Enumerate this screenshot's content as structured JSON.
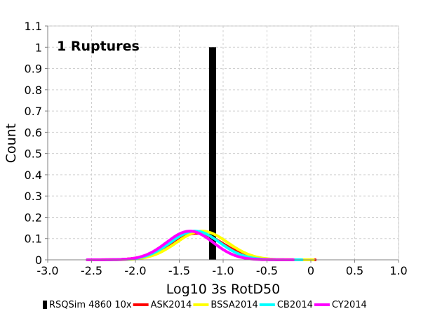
{
  "chart_data": {
    "type": "line",
    "title": "",
    "annotation": "1 Ruptures",
    "xlabel": "Log10 3s RotD50",
    "ylabel": "Count",
    "xlim": [
      -3.0,
      1.0
    ],
    "ylim": [
      0,
      1.1
    ],
    "x_ticks": [
      "-3.0",
      "-2.5",
      "-2.0",
      "-1.5",
      "-1.0",
      "-0.5",
      "0",
      "0.5",
      "1.0"
    ],
    "y_ticks": [
      "0",
      "0.1",
      "0.2",
      "0.3",
      "0.4",
      "0.5",
      "0.6",
      "0.7",
      "0.8",
      "0.9",
      "1",
      "1.1"
    ],
    "grid": true,
    "legend_position": "bottom",
    "bar": {
      "name": "RSQSim 4860 10x",
      "color": "#000000",
      "x_start": -1.16,
      "x_end": -1.08,
      "value": 1.0
    },
    "series": [
      {
        "name": "ASK2014",
        "color": "#ff0000",
        "mean": -1.3,
        "sigma": 0.3,
        "peak": 0.125,
        "x_min": -2.55,
        "x_max": 0.05
      },
      {
        "name": "BSSA2014",
        "color": "#ffff00",
        "mean": -1.24,
        "sigma": 0.29,
        "peak": 0.135,
        "x_min": -2.55,
        "x_max": 0.03
      },
      {
        "name": "CB2014",
        "color": "#00ffff",
        "mean": -1.32,
        "sigma": 0.28,
        "peak": 0.135,
        "x_min": -2.55,
        "x_max": -0.1
      },
      {
        "name": "CY2014",
        "color": "#ff00ff",
        "mean": -1.38,
        "sigma": 0.265,
        "peak": 0.135,
        "x_min": -2.55,
        "x_max": -0.2
      }
    ]
  }
}
